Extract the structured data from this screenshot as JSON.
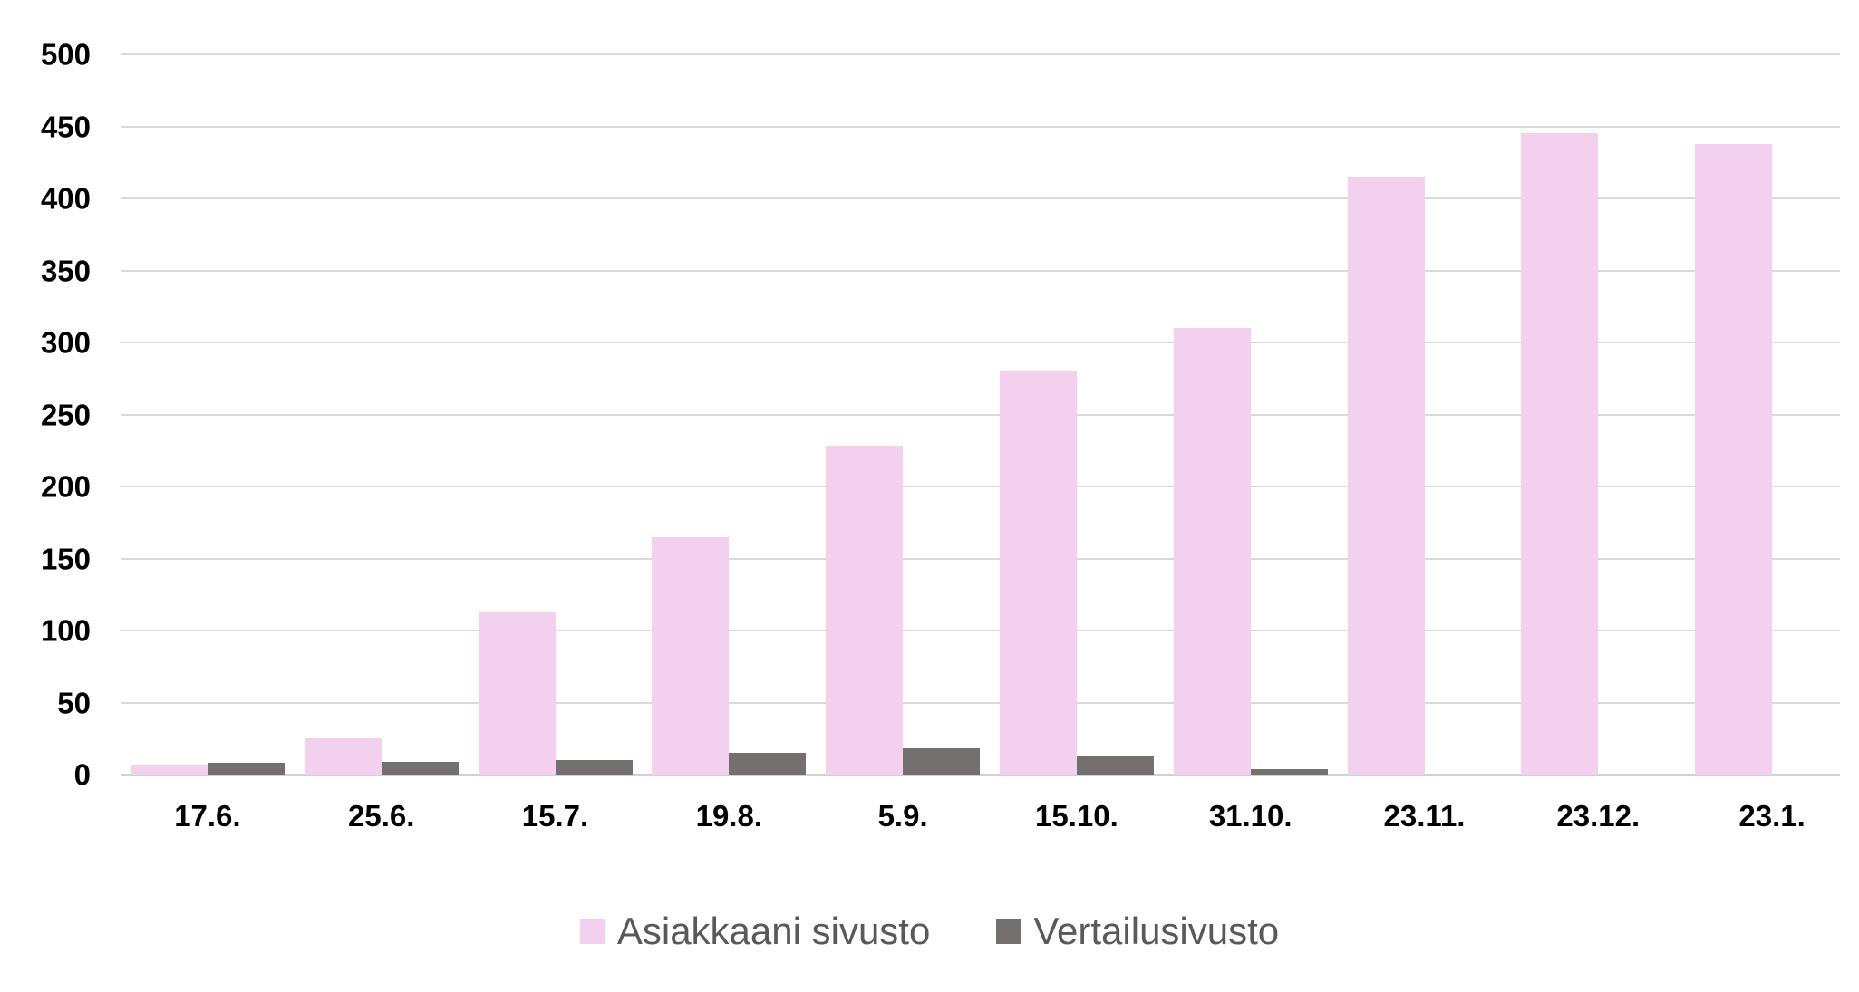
{
  "chart_data": {
    "type": "bar",
    "title": "",
    "categories": [
      "17.6.",
      "25.6.",
      "15.7.",
      "19.8.",
      "5.9.",
      "15.10.",
      "31.10.",
      "23.11.",
      "23.12.",
      "23.1."
    ],
    "series": [
      {
        "name": "Asiakkaani sivusto",
        "color": "#F2D0EE",
        "values": [
          7,
          25,
          113,
          165,
          228,
          280,
          310,
          415,
          445,
          438
        ]
      },
      {
        "name": "Vertailusivusto",
        "color": "#757070",
        "values": [
          8,
          9,
          10,
          15,
          18,
          13,
          4,
          0,
          0,
          0
        ]
      }
    ],
    "ylim": [
      0,
      500
    ],
    "yticks": [
      0,
      50,
      100,
      150,
      200,
      250,
      300,
      350,
      400,
      450,
      500
    ],
    "xlabel": "",
    "ylabel": "",
    "grid": "horizontal",
    "gridline_color": "#D9D9D9",
    "axis_line_color": "#D2D0D0",
    "tick_label_color": "#000000",
    "legend": {
      "position": "bottom-center",
      "text_color": "#595959"
    }
  }
}
